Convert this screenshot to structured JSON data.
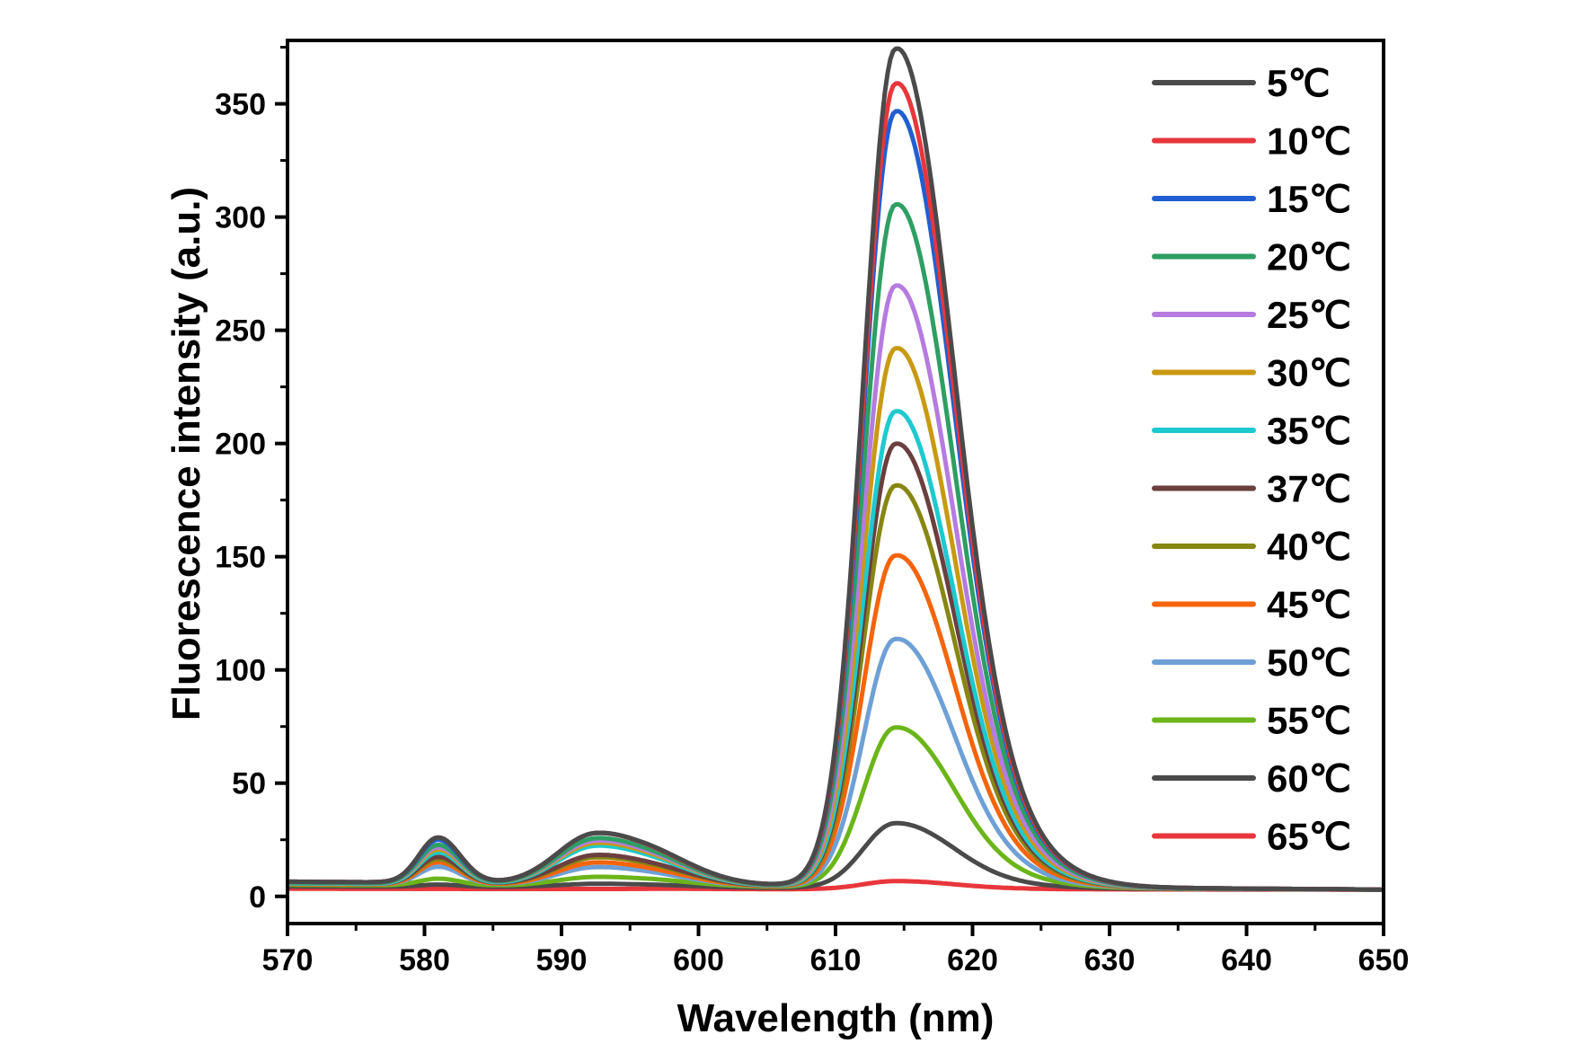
{
  "chart_data": {
    "type": "line",
    "xlabel": "Wavelength (nm)",
    "ylabel": "Fluorescence intensity (a.u.)",
    "xlim": [
      570,
      650
    ],
    "ylim": [
      -12,
      378
    ],
    "xticks": [
      "570",
      "580",
      "590",
      "600",
      "610",
      "620",
      "630",
      "640",
      "650"
    ],
    "yticks": [
      "0",
      "50",
      "100",
      "150",
      "200",
      "250",
      "300",
      "350"
    ],
    "legend_position": "top-right",
    "grid": false,
    "series": [
      {
        "name": "5℃",
        "color": "#4a4a4a",
        "peak": 361,
        "b1": 20,
        "b2": 22,
        "shoulder": 22,
        "tail": 5.0
      },
      {
        "name": "10℃",
        "color": "#e8363c",
        "peak": 346,
        "b1": 20,
        "b2": 22,
        "shoulder": 21,
        "tail": 5.0
      },
      {
        "name": "15℃",
        "color": "#1f5fd1",
        "peak": 334,
        "b1": 19,
        "b2": 22,
        "shoulder": 21,
        "tail": 5.0
      },
      {
        "name": "20℃",
        "color": "#2e9e63",
        "peak": 294,
        "b1": 17,
        "b2": 20,
        "shoulder": 19,
        "tail": 4.5
      },
      {
        "name": "25℃",
        "color": "#b57be0",
        "peak": 259,
        "b1": 16,
        "b2": 19,
        "shoulder": 18,
        "tail": 4.5
      },
      {
        "name": "30℃",
        "color": "#c89a12",
        "peak": 232,
        "b1": 15,
        "b2": 18,
        "shoulder": 17,
        "tail": 4.5
      },
      {
        "name": "35℃",
        "color": "#1ec9cf",
        "peak": 205,
        "b1": 14,
        "b2": 17,
        "shoulder": 16,
        "tail": 4.0
      },
      {
        "name": "37℃",
        "color": "#6b3f3f",
        "peak": 191,
        "b1": 12,
        "b2": 13,
        "shoulder": 13,
        "tail": 4.0
      },
      {
        "name": "40℃",
        "color": "#878612",
        "peak": 173,
        "b1": 11,
        "b2": 12,
        "shoulder": 12,
        "tail": 4.0
      },
      {
        "name": "45℃",
        "color": "#f5640a",
        "peak": 143,
        "b1": 10,
        "b2": 10,
        "shoulder": 10,
        "tail": 3.5
      },
      {
        "name": "50℃",
        "color": "#6ea0d6",
        "peak": 107,
        "b1": 8,
        "b2": 8,
        "shoulder": 8,
        "tail": 3.5
      },
      {
        "name": "55℃",
        "color": "#6bb51a",
        "peak": 69,
        "b1": 3,
        "b2": 4,
        "shoulder": 5,
        "tail": 3.0
      },
      {
        "name": "60℃",
        "color": "#4a4a4a",
        "peak": 28,
        "b1": 1,
        "b2": 1.5,
        "shoulder": 2,
        "tail": 2.0
      },
      {
        "name": "65℃",
        "color": "#e8363c",
        "peak": 3.5,
        "b1": 0,
        "b2": 0,
        "shoulder": 0.5,
        "tail": 0.5
      }
    ]
  }
}
